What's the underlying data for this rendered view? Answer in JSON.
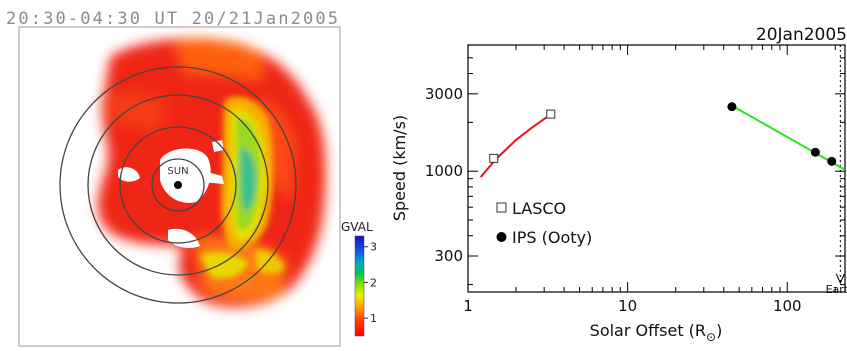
{
  "header": {
    "title": "20:30-04:30 UT 20/21Jan2005"
  },
  "map": {
    "center_label": "SUN",
    "colorbar": {
      "label": "GVAL",
      "ticks": [
        "1",
        "2",
        "3"
      ],
      "range": [
        0.5,
        3.3
      ]
    }
  },
  "chart_data": {
    "type": "line",
    "title": "20Jan2005",
    "xlabel": "Solar Offset (R",
    "xlabel_sub": "⊙",
    "xlabel_close": ")",
    "ylabel": "Speed (km/s)",
    "xscale": "log",
    "yscale": "log",
    "xlim": [
      1,
      230
    ],
    "ylim": [
      180,
      6000
    ],
    "xticks": [
      {
        "value": 1,
        "label": "1"
      },
      {
        "value": 10,
        "label": "10"
      },
      {
        "value": 100,
        "label": "100"
      }
    ],
    "yticks": [
      {
        "value": 300,
        "label": "300"
      },
      {
        "value": 1000,
        "label": "1000"
      },
      {
        "value": 3000,
        "label": "3000"
      }
    ],
    "earth": {
      "value": 215,
      "label": "Earth"
    },
    "legend_position": "lower-left",
    "series": [
      {
        "name": "LASCO",
        "marker": "square",
        "fit_color": "#e8141c",
        "points": [
          [
            1.45,
            1200
          ],
          [
            3.3,
            2250
          ]
        ],
        "fit_x": [
          1.2,
          1.5,
          2.0,
          2.5,
          3.0,
          3.45
        ],
        "fit_y": [
          920,
          1190,
          1560,
          1850,
          2100,
          2300
        ]
      },
      {
        "name": "IPS (Ooty)",
        "marker": "filled-circle",
        "fit_color": "#2be61c",
        "points": [
          [
            45,
            2500
          ],
          [
            150,
            1310
          ],
          [
            190,
            1150
          ]
        ],
        "fit_x": [
          44,
          230
        ],
        "fit_y": [
          2570,
          1020
        ]
      }
    ]
  }
}
